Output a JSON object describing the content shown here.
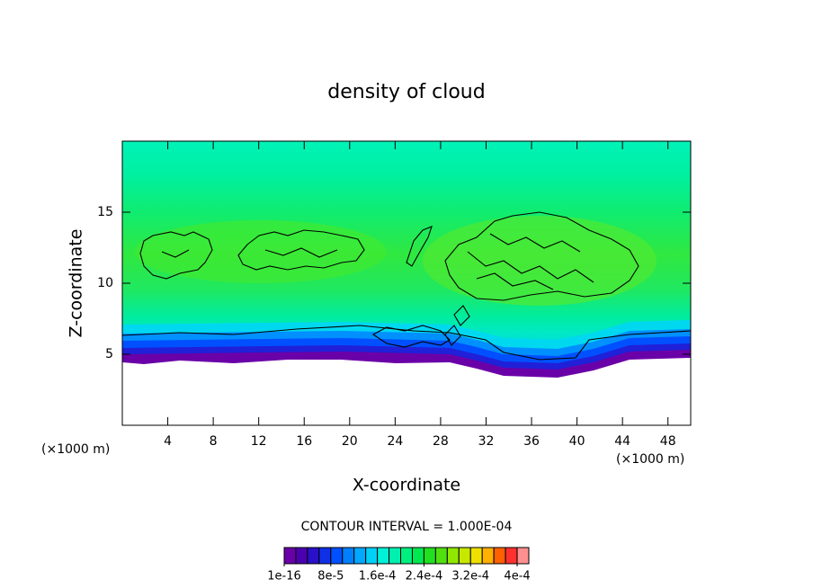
{
  "chart_data": {
    "type": "contour",
    "title": "density of cloud",
    "xlabel": "X-coordinate",
    "ylabel": "Z-coordinate",
    "x_unit_label": "(×1000 m)",
    "y_unit_label": "(×1000 m)",
    "xlim": [
      0,
      50
    ],
    "ylim": [
      0,
      20
    ],
    "xticks": [
      4,
      8,
      12,
      16,
      20,
      24,
      28,
      32,
      36,
      40,
      44,
      48
    ],
    "yticks": [
      5,
      10,
      15
    ],
    "contour_interval_label": "CONTOUR INTERVAL = 1.000E-04",
    "colorbar": {
      "lim": [
        1e-16,
        0.00042
      ],
      "ticks": [
        {
          "value": 1e-16,
          "label": "1e-16"
        },
        {
          "value": 8e-05,
          "label": "8e-5"
        },
        {
          "value": 0.00016,
          "label": "1.6e-4"
        },
        {
          "value": 0.00024,
          "label": "2.4e-4"
        },
        {
          "value": 0.00032,
          "label": "3.2e-4"
        },
        {
          "value": 0.0004,
          "label": "4e-4"
        }
      ],
      "colors": [
        "#6a00a8",
        "#4a00b0",
        "#2a10c8",
        "#1030e8",
        "#0050ff",
        "#0080ff",
        "#00a8ff",
        "#00d0f8",
        "#00f0d8",
        "#00f0b0",
        "#00f080",
        "#00e850",
        "#20e020",
        "#50e010",
        "#90e800",
        "#c8e800",
        "#f0e000",
        "#ffb000",
        "#ff6000",
        "#ff3030",
        "#ff9090"
      ]
    }
  }
}
